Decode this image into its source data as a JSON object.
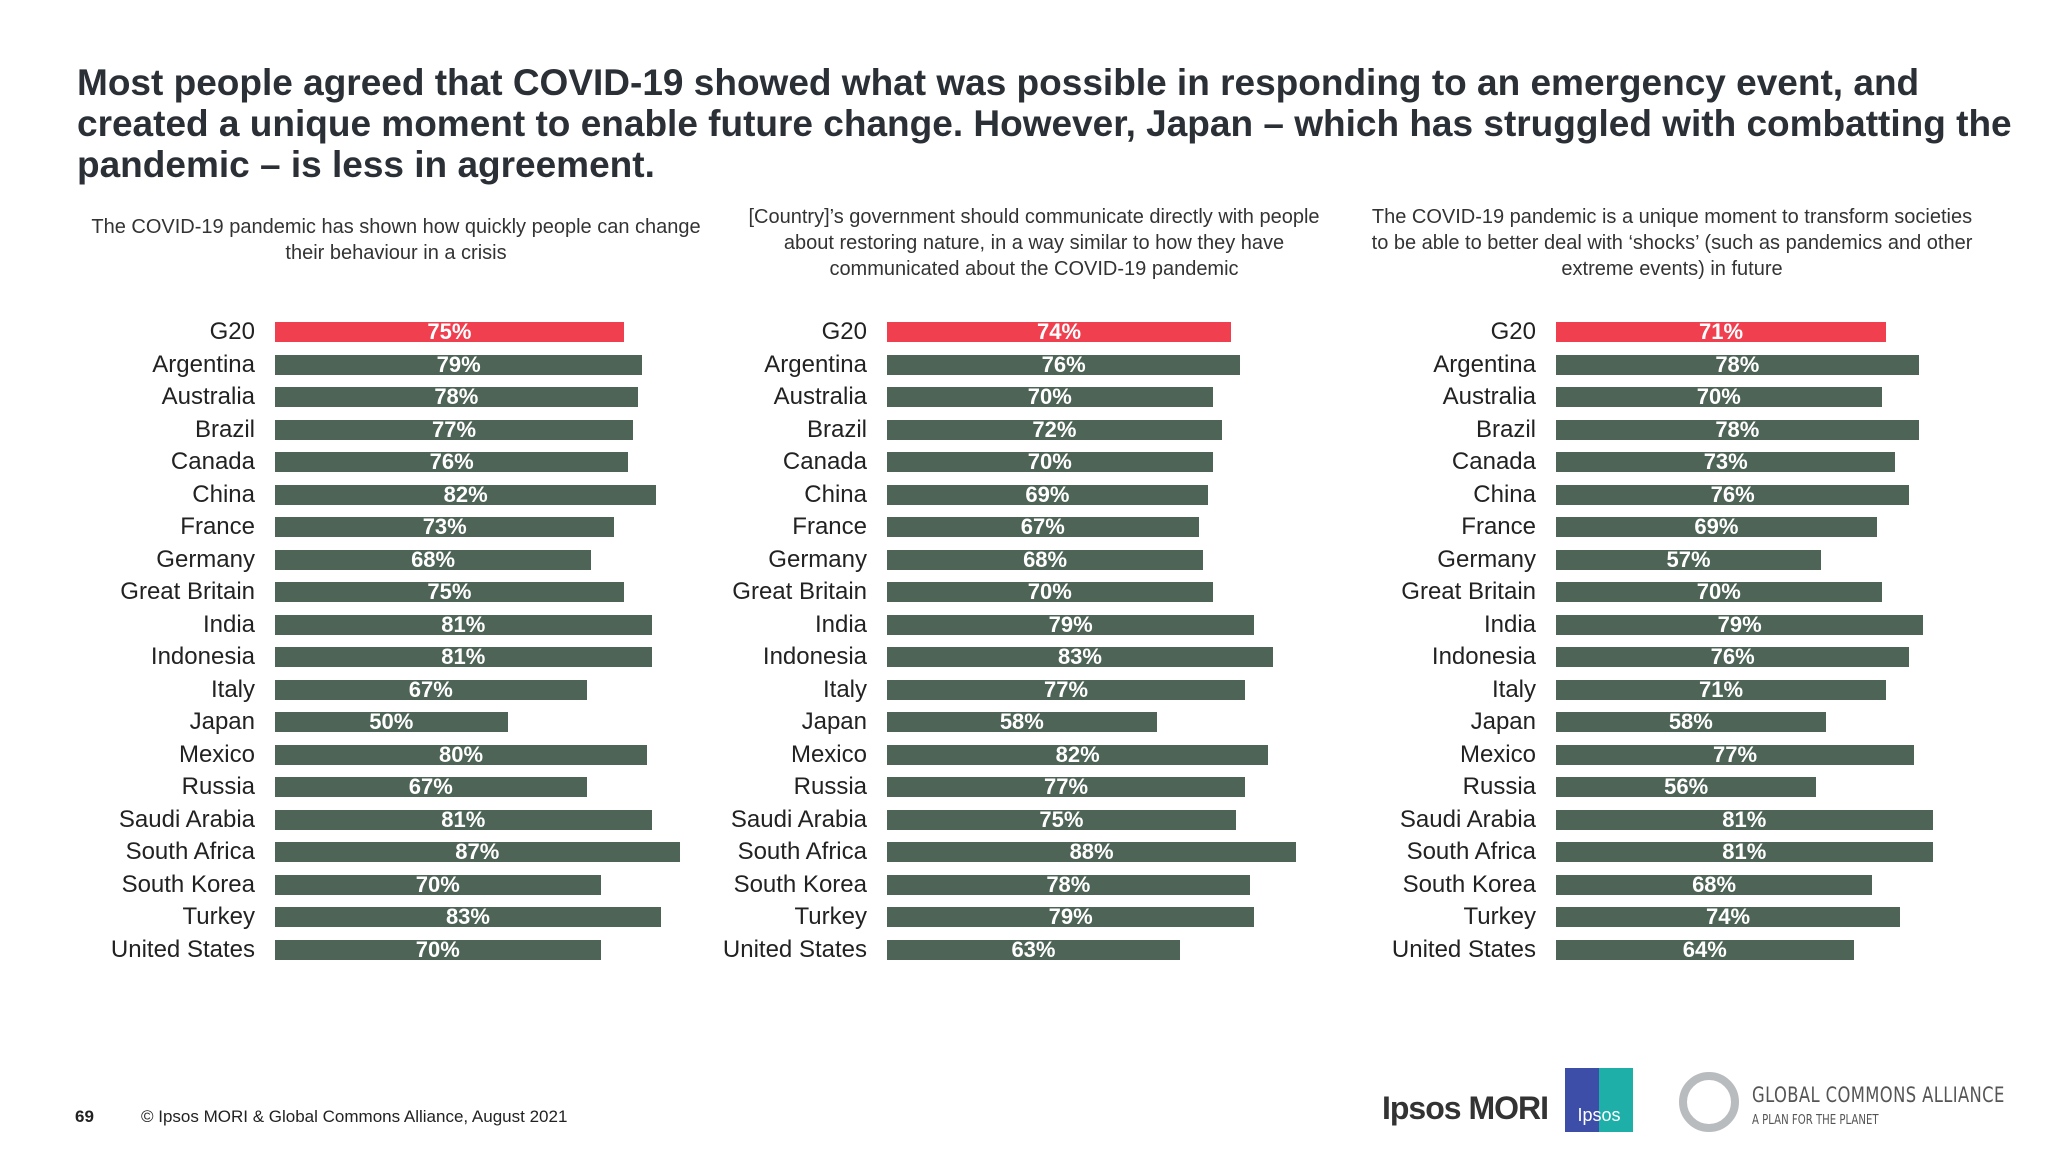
{
  "title": "Most people agreed that COVID-19 showed what was possible in responding to an emergency event, and created a unique moment to enable future change. However, Japan – which has struggled with combatting the pandemic – is less in agreement.",
  "colors": {
    "highlight": "#f0404f",
    "bar": "#4d6457"
  },
  "chart_data": [
    {
      "type": "bar",
      "orientation": "horizontal",
      "title": "The COVID-19 pandemic has shown how quickly people can change their behaviour in a crisis",
      "categories": [
        "G20",
        "Argentina",
        "Australia",
        "Brazil",
        "Canada",
        "China",
        "France",
        "Germany",
        "Great Britain",
        "India",
        "Indonesia",
        "Italy",
        "Japan",
        "Mexico",
        "Russia",
        "Saudi Arabia",
        "South Africa",
        "South Korea",
        "Turkey",
        "United States"
      ],
      "values": [
        75,
        79,
        78,
        77,
        76,
        82,
        73,
        68,
        75,
        81,
        81,
        67,
        50,
        80,
        67,
        81,
        87,
        70,
        83,
        70
      ],
      "labels": [
        "75%",
        "79%",
        "78%",
        "77%",
        "76%",
        "82%",
        "73%",
        "68%",
        "75%",
        "81%",
        "81%",
        "67%",
        "50%",
        "80%",
        "67%",
        "81%",
        "87%",
        "70%",
        "83%",
        "70%"
      ],
      "highlight": "G20"
    },
    {
      "type": "bar",
      "orientation": "horizontal",
      "title": "[Country]’s government should communicate directly with people about restoring nature, in a way similar to how they have communicated about the COVID-19 pandemic",
      "categories": [
        "G20",
        "Argentina",
        "Australia",
        "Brazil",
        "Canada",
        "China",
        "France",
        "Germany",
        "Great Britain",
        "India",
        "Indonesia",
        "Italy",
        "Japan",
        "Mexico",
        "Russia",
        "Saudi Arabia",
        "South Africa",
        "South Korea",
        "Turkey",
        "United States"
      ],
      "values": [
        74,
        76,
        70,
        72,
        70,
        69,
        67,
        68,
        70,
        79,
        83,
        77,
        58,
        82,
        77,
        75,
        88,
        78,
        79,
        63
      ],
      "labels": [
        "74%",
        "76%",
        "70%",
        "72%",
        "70%",
        "69%",
        "67%",
        "68%",
        "70%",
        "79%",
        "83%",
        "77%",
        "58%",
        "82%",
        "77%",
        "75%",
        "88%",
        "78%",
        "79%",
        "63%"
      ],
      "highlight": "G20"
    },
    {
      "type": "bar",
      "orientation": "horizontal",
      "title": "The COVID-19 pandemic is a unique moment to transform societies to be able to better deal with ‘shocks’ (such as pandemics and other extreme events) in future",
      "categories": [
        "G20",
        "Argentina",
        "Australia",
        "Brazil",
        "Canada",
        "China",
        "France",
        "Germany",
        "Great Britain",
        "India",
        "Indonesia",
        "Italy",
        "Japan",
        "Mexico",
        "Russia",
        "Saudi Arabia",
        "South Africa",
        "South Korea",
        "Turkey",
        "United States"
      ],
      "values": [
        71,
        78,
        70,
        78,
        73,
        76,
        69,
        57,
        70,
        79,
        76,
        71,
        58,
        77,
        56,
        81,
        81,
        68,
        74,
        64
      ],
      "labels": [
        "71%",
        "78%",
        "70%",
        "78%",
        "73%",
        "76%",
        "69%",
        "57%",
        "70%",
        "79%",
        "76%",
        "71%",
        "58%",
        "77%",
        "56%",
        "81%",
        "81%",
        "68%",
        "74%",
        "64%"
      ],
      "highlight": "G20"
    }
  ],
  "footer": {
    "page_number": "69",
    "copyright": "© Ipsos MORI & Global Commons Alliance, August 2021"
  },
  "logos": {
    "ipsos_mori": "Ipsos MORI",
    "ipsos": "Ipsos",
    "gca_name": "GLOBAL COMMONS ALLIANCE",
    "gca_tagline": "A PLAN FOR THE PLANET"
  }
}
